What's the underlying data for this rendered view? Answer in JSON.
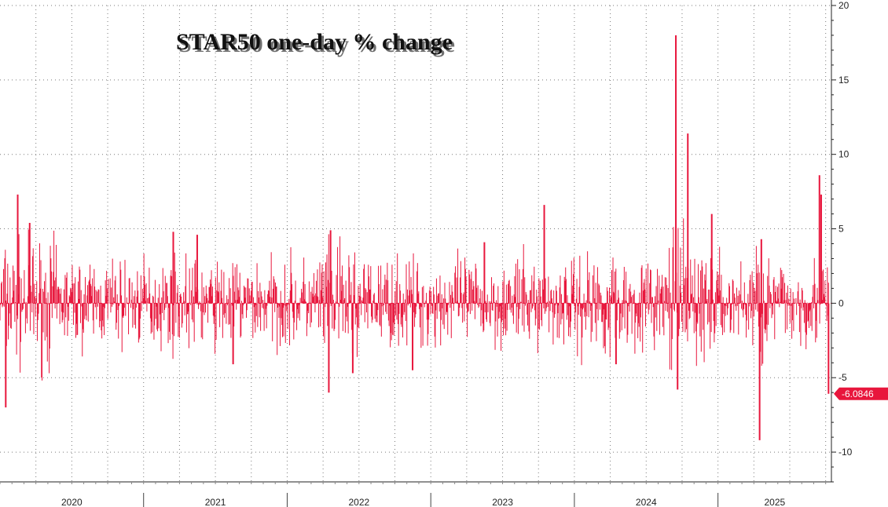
{
  "chart_data": {
    "type": "bar",
    "title": "STAR50 one-day % change",
    "xlabel": "",
    "ylabel": "",
    "ylim": [
      -12,
      20
    ],
    "y_ticks": [
      -10,
      -5,
      0,
      5,
      10,
      15,
      20
    ],
    "year_labels": [
      "2020",
      "2021",
      "2022",
      "2023",
      "2024",
      "2025"
    ],
    "grid": true,
    "series_color": "#e8163c",
    "last_value_label": "-6.0846",
    "last_value": -6.0846,
    "notable_points": [
      {
        "date": "2020-01",
        "value": -7.0
      },
      {
        "date": "2020-02",
        "value": 7.3
      },
      {
        "date": "2020-03",
        "value": 5.4
      },
      {
        "date": "2021-03",
        "value": 4.8
      },
      {
        "date": "2021-05",
        "value": 4.6
      },
      {
        "date": "2021-08",
        "value": -4.1
      },
      {
        "date": "2022-04",
        "value": -6.0
      },
      {
        "date": "2022-04",
        "value": 4.9
      },
      {
        "date": "2022-06",
        "value": -4.7
      },
      {
        "date": "2022-11",
        "value": -4.5
      },
      {
        "date": "2023-05",
        "value": 4.1
      },
      {
        "date": "2023-10",
        "value": 6.6
      },
      {
        "date": "2024-04",
        "value": -4.1
      },
      {
        "date": "2024-09",
        "value": 18.0
      },
      {
        "date": "2024-09",
        "value": -5.8
      },
      {
        "date": "2024-10",
        "value": 11.4
      },
      {
        "date": "2024-12",
        "value": 6.0
      },
      {
        "date": "2025-04",
        "value": -9.2
      },
      {
        "date": "2025-04",
        "value": 4.3
      },
      {
        "date": "2025-09",
        "value": 8.6
      },
      {
        "date": "2025-09",
        "value": 7.3
      },
      {
        "date": "2025-09",
        "value": -6.0846
      }
    ],
    "grid_color": "#7a7a7a",
    "zero_line_color": "#e8163c"
  }
}
